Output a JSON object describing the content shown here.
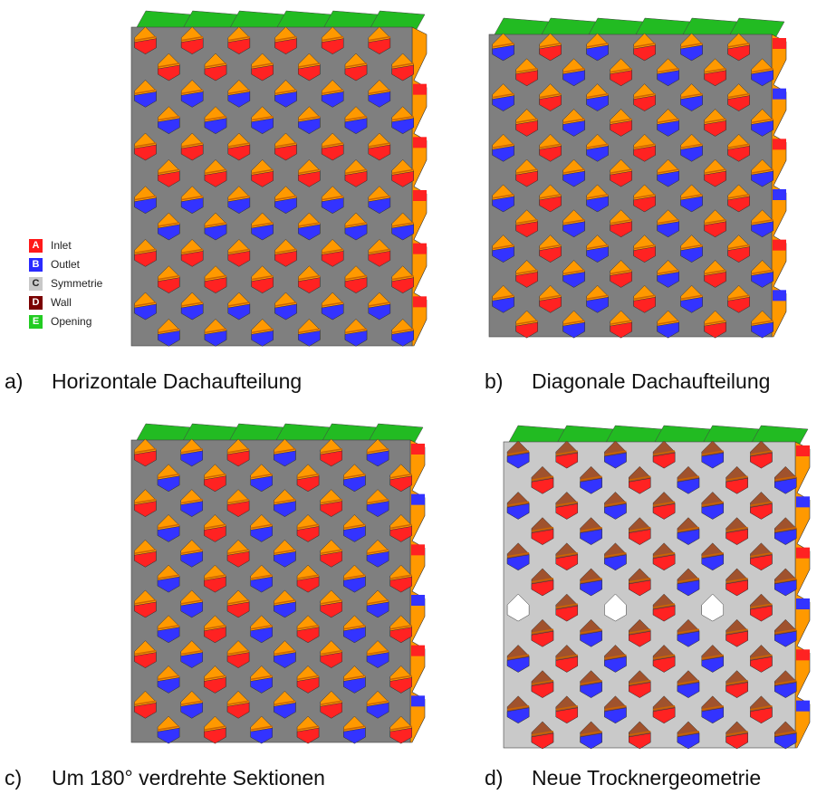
{
  "legend": {
    "items": [
      {
        "key": "A",
        "label": "Inlet"
      },
      {
        "key": "B",
        "label": "Outlet"
      },
      {
        "key": "C",
        "label": "Symmetrie"
      },
      {
        "key": "D",
        "label": "Wall"
      },
      {
        "key": "E",
        "label": "Opening"
      }
    ]
  },
  "panels": [
    {
      "letter": "a)",
      "caption": "Horizontale Dachaufteilung"
    },
    {
      "letter": "b)",
      "caption": "Diagonale Dachaufteilung"
    },
    {
      "letter": "c)",
      "caption": "Um 180° verdrehte Sektionen"
    },
    {
      "letter": "d)",
      "caption": "Neue Trocknergeometrie"
    }
  ]
}
